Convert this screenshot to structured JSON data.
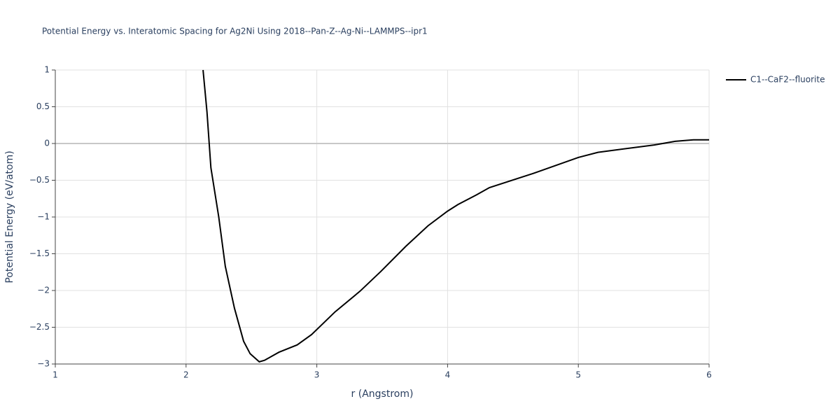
{
  "chart_data": {
    "type": "line",
    "title": "Potential Energy vs. Interatomic Spacing for Ag2Ni Using 2018--Pan-Z--Ag-Ni--LAMMPS--ipr1",
    "x_label": "r (Angstrom)",
    "y_label": "Potential Energy (eV/atom)",
    "legend": "top-right",
    "grid": true,
    "xlim": [
      1,
      6
    ],
    "ylim": [
      -3,
      1
    ],
    "xticks": [
      1,
      2,
      3,
      4,
      5,
      6
    ],
    "yticks": [
      1,
      0.5,
      0,
      {
        "value": -0.5,
        "label": "−0.5"
      },
      {
        "value": -1,
        "label": "−1"
      },
      {
        "value": -1.5,
        "label": "−1.5"
      },
      {
        "value": -2,
        "label": "−2"
      },
      {
        "value": -2.5,
        "label": "−2.5"
      },
      {
        "value": -3,
        "label": "−3"
      }
    ],
    "x": [
      2.13,
      2.16,
      2.19,
      2.25,
      2.3,
      2.37,
      2.44,
      2.49,
      2.56,
      2.6,
      2.71,
      2.85,
      2.96,
      3.14,
      3.33,
      3.49,
      3.68,
      3.85,
      4.0,
      4.08,
      4.22,
      4.32,
      4.65,
      5.0,
      5.15,
      5.58,
      5.74,
      5.88,
      6.0
    ],
    "series": [
      {
        "name": "C1--CaF2--fluorite",
        "color": "#000000",
        "values": [
          1.0,
          0.43,
          -0.33,
          -1.0,
          -1.67,
          -2.24,
          -2.69,
          -2.86,
          -2.97,
          -2.95,
          -2.84,
          -2.74,
          -2.6,
          -2.29,
          -2.01,
          -1.74,
          -1.4,
          -1.12,
          -0.92,
          -0.83,
          -0.7,
          -0.6,
          -0.41,
          -0.19,
          -0.12,
          -0.02,
          0.03,
          0.05,
          0.05
        ]
      }
    ]
  }
}
